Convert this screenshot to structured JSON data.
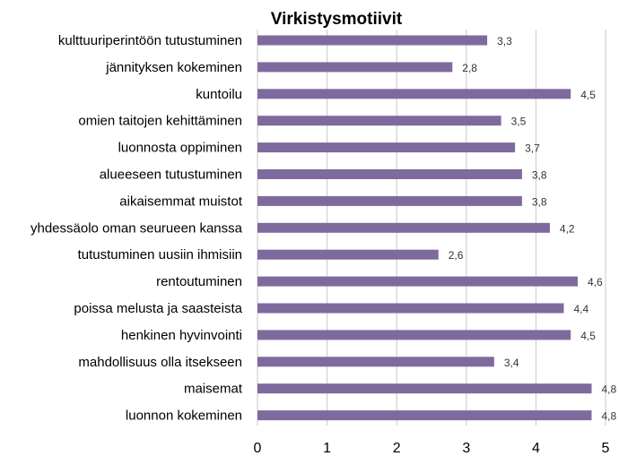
{
  "chart_data": {
    "type": "bar",
    "orientation": "horizontal",
    "title": "Virkistysmotiivit",
    "xlabel": "",
    "ylabel": "",
    "xlim": [
      0,
      5
    ],
    "x_ticks": [
      "0",
      "1",
      "2",
      "3",
      "4",
      "5"
    ],
    "grid": "vertical",
    "legend": "none",
    "bar_color": "#7f6a9e",
    "categories": [
      "kulttuuriperintöön tutustuminen",
      "jännityksen kokeminen",
      "kuntoilu",
      "omien taitojen kehittäminen",
      "luonnosta oppiminen",
      "alueeseen tutustuminen",
      "aikaisemmat muistot",
      "yhdessäolo oman seurueen kanssa",
      "tutustuminen uusiin ihmisiin",
      "rentoutuminen",
      "poissa melusta ja saasteista",
      "henkinen hyvinvointi",
      "mahdollisuus olla itsekseen",
      "maisemat",
      "luonnon kokeminen"
    ],
    "values": [
      3.3,
      2.8,
      4.5,
      3.5,
      3.7,
      3.8,
      3.8,
      4.2,
      2.6,
      4.6,
      4.4,
      4.5,
      3.4,
      4.8,
      4.8
    ],
    "value_labels": [
      "3,3",
      "2,8",
      "4,5",
      "3,5",
      "3,7",
      "3,8",
      "3,8",
      "4,2",
      "2,6",
      "4,6",
      "4,4",
      "4,5",
      "3,4",
      "4,8",
      "4,8"
    ]
  }
}
